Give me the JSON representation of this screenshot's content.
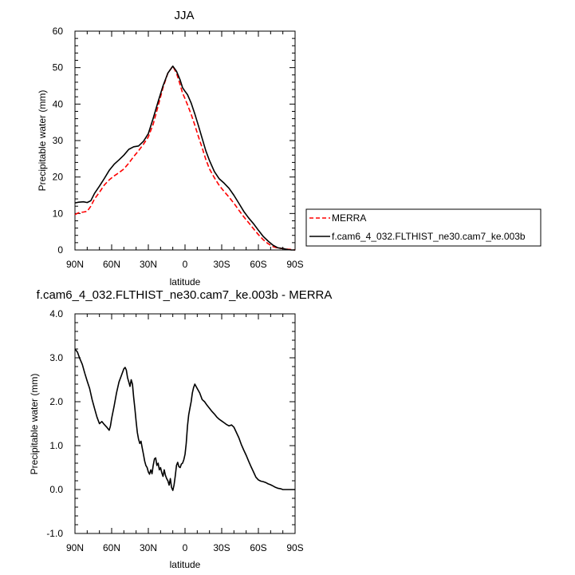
{
  "chart_data": [
    {
      "type": "line",
      "title": "JJA",
      "xlabel": "latitude",
      "ylabel": "Precipitable water (mm)",
      "xlim": [
        90,
        -90
      ],
      "ylim": [
        0,
        60
      ],
      "xticks": [
        {
          "value": 90,
          "label": "90N"
        },
        {
          "value": 60,
          "label": "60N"
        },
        {
          "value": 30,
          "label": "30N"
        },
        {
          "value": 0,
          "label": "0"
        },
        {
          "value": -30,
          "label": "30S"
        },
        {
          "value": -60,
          "label": "60S"
        },
        {
          "value": -90,
          "label": "90S"
        }
      ],
      "yticks": [
        {
          "value": 0,
          "label": "0"
        },
        {
          "value": 10,
          "label": "10"
        },
        {
          "value": 20,
          "label": "20"
        },
        {
          "value": 30,
          "label": "30"
        },
        {
          "value": 40,
          "label": "40"
        },
        {
          "value": 50,
          "label": "50"
        },
        {
          "value": 60,
          "label": "60"
        }
      ],
      "legend": {
        "position": "right"
      },
      "series": [
        {
          "name": "MERRA",
          "color": "#ff0000",
          "dash": "dashed",
          "x": [
            90,
            87,
            83,
            80,
            77,
            74,
            70,
            66,
            62,
            58,
            54,
            50,
            46,
            42,
            38,
            34,
            30,
            26,
            22,
            18,
            14,
            10,
            7,
            4,
            2,
            0,
            -2,
            -5,
            -8,
            -11,
            -14,
            -17,
            -20,
            -24,
            -28,
            -32,
            -36,
            -40,
            -44,
            -48,
            -52,
            -56,
            -60,
            -64,
            -68,
            -72,
            -76,
            -80,
            -84,
            -87,
            -90
          ],
          "values": [
            9.7,
            10.2,
            10.4,
            10.6,
            12.0,
            14.0,
            15.8,
            17.8,
            19.2,
            20.3,
            21.2,
            22.2,
            23.8,
            25.6,
            27.2,
            29.0,
            31.0,
            34.5,
            39.5,
            44.5,
            48.5,
            50.4,
            48.5,
            45.3,
            43.0,
            41.5,
            39.8,
            37.2,
            34.2,
            31.0,
            28.0,
            24.8,
            22.2,
            19.8,
            17.7,
            16.0,
            14.5,
            12.8,
            10.9,
            9.1,
            7.5,
            5.8,
            4.2,
            2.8,
            1.7,
            0.9,
            0.5,
            0.4,
            0.2,
            0.1,
            0.0
          ]
        },
        {
          "name": "f.cam6_4_032.FLTHIST_ne30.cam7_ke.003b",
          "color": "#000000",
          "dash": "solid",
          "x": [
            90,
            87,
            83,
            80,
            77,
            74,
            70,
            66,
            62,
            58,
            54,
            50,
            46,
            42,
            38,
            34,
            30,
            26,
            22,
            18,
            14,
            10,
            7,
            4,
            2,
            0,
            -2,
            -5,
            -8,
            -11,
            -14,
            -17,
            -20,
            -24,
            -28,
            -32,
            -36,
            -40,
            -44,
            -48,
            -52,
            -56,
            -60,
            -64,
            -68,
            -72,
            -76,
            -80,
            -84,
            -87,
            -90
          ],
          "values": [
            12.9,
            13.1,
            13.2,
            13.0,
            13.5,
            15.5,
            17.5,
            19.6,
            21.8,
            23.5,
            24.7,
            26.0,
            27.6,
            28.3,
            28.5,
            29.8,
            31.9,
            36.1,
            40.7,
            45.0,
            48.5,
            50.4,
            49.0,
            46.6,
            44.5,
            43.5,
            42.6,
            40.3,
            37.3,
            34.0,
            30.6,
            27.2,
            24.5,
            21.5,
            19.5,
            18.3,
            16.9,
            15.0,
            12.8,
            10.6,
            8.8,
            7.2,
            5.4,
            3.7,
            2.4,
            1.3,
            0.6,
            0.4,
            0.1,
            0.0,
            0.0
          ]
        }
      ]
    },
    {
      "type": "line",
      "title": "f.cam6_4_032.FLTHIST_ne30.cam7_ke.003b - MERRA",
      "xlabel": "latitude",
      "ylabel": "Precipitable water (mm)",
      "xlim": [
        90,
        -90
      ],
      "ylim": [
        -1.0,
        4.0
      ],
      "xticks": [
        {
          "value": 90,
          "label": "90N"
        },
        {
          "value": 60,
          "label": "60N"
        },
        {
          "value": 30,
          "label": "30N"
        },
        {
          "value": 0,
          "label": "0"
        },
        {
          "value": -30,
          "label": "30S"
        },
        {
          "value": -60,
          "label": "60S"
        },
        {
          "value": -90,
          "label": "90S"
        }
      ],
      "yticks": [
        {
          "value": -1.0,
          "label": "-1.0"
        },
        {
          "value": 0.0,
          "label": "0.0"
        },
        {
          "value": 1.0,
          "label": "1.0"
        },
        {
          "value": 2.0,
          "label": "2.0"
        },
        {
          "value": 3.0,
          "label": "3.0"
        },
        {
          "value": 4.0,
          "label": "4.0"
        }
      ],
      "series": [
        {
          "name": "f.cam6_4_032.FLTHIST_ne30.cam7_ke.003b - MERRA",
          "color": "#000000",
          "dash": "solid",
          "x": [
            90,
            88,
            86,
            84,
            82,
            80,
            78,
            76,
            74,
            72,
            70,
            68,
            66,
            64,
            62,
            61,
            60,
            58,
            56,
            54,
            52,
            50,
            49,
            48,
            47,
            46,
            45,
            44,
            43,
            42,
            41,
            40,
            39,
            38,
            37,
            36,
            35,
            34,
            33,
            32,
            31,
            30,
            29,
            28,
            27,
            26,
            25,
            24,
            23,
            22,
            21,
            20,
            19,
            18,
            17,
            16,
            15,
            14,
            13,
            12,
            11,
            10,
            9,
            8,
            7,
            6,
            5,
            4,
            3,
            2,
            1,
            0,
            -1,
            -2,
            -3,
            -4,
            -5,
            -6,
            -7,
            -8,
            -10,
            -12,
            -14,
            -16,
            -18,
            -20,
            -22,
            -24,
            -26,
            -28,
            -30,
            -32,
            -34,
            -36,
            -38,
            -40,
            -42,
            -44,
            -46,
            -48,
            -50,
            -52,
            -54,
            -56,
            -58,
            -60,
            -62,
            -64,
            -66,
            -68,
            -70,
            -72,
            -74,
            -76,
            -78,
            -80,
            -82,
            -84,
            -86,
            -88,
            -90
          ],
          "values": [
            3.2,
            3.13,
            2.98,
            2.85,
            2.65,
            2.47,
            2.3,
            2.05,
            1.85,
            1.65,
            1.5,
            1.55,
            1.48,
            1.42,
            1.35,
            1.45,
            1.62,
            1.9,
            2.2,
            2.45,
            2.6,
            2.75,
            2.78,
            2.72,
            2.55,
            2.45,
            2.35,
            2.5,
            2.4,
            2.1,
            1.85,
            1.55,
            1.3,
            1.15,
            1.05,
            1.1,
            0.95,
            0.8,
            0.65,
            0.55,
            0.5,
            0.4,
            0.35,
            0.45,
            0.36,
            0.55,
            0.7,
            0.72,
            0.55,
            0.6,
            0.45,
            0.5,
            0.38,
            0.3,
            0.45,
            0.32,
            0.25,
            0.2,
            0.1,
            0.25,
            0.05,
            -0.02,
            0.1,
            0.3,
            0.55,
            0.62,
            0.52,
            0.5,
            0.58,
            0.6,
            0.68,
            0.8,
            1.05,
            1.45,
            1.7,
            1.85,
            2.0,
            2.2,
            2.32,
            2.4,
            2.3,
            2.2,
            2.05,
            2.0,
            1.92,
            1.85,
            1.78,
            1.72,
            1.65,
            1.6,
            1.56,
            1.52,
            1.48,
            1.45,
            1.47,
            1.42,
            1.3,
            1.18,
            1.03,
            0.9,
            0.78,
            0.65,
            0.52,
            0.4,
            0.28,
            0.22,
            0.19,
            0.18,
            0.16,
            0.13,
            0.11,
            0.08,
            0.05,
            0.03,
            0.02,
            0.0,
            0.0,
            0.0,
            0.0,
            0.0,
            0.0
          ]
        }
      ]
    }
  ]
}
